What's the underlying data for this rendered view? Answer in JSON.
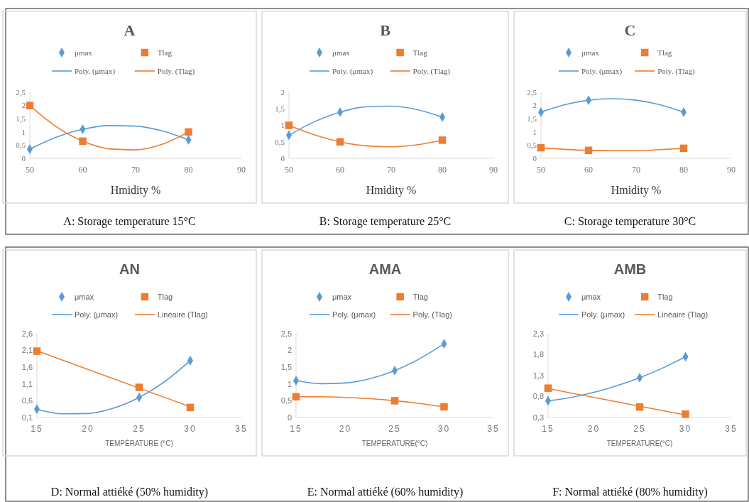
{
  "chart_data": [
    {
      "type": "scatter",
      "title": "A",
      "xlabel": "Hmidity %",
      "xlim": [
        50,
        90
      ],
      "xticks": [
        50,
        60,
        70,
        80,
        90
      ],
      "ylim": [
        0,
        2.5
      ],
      "yticks": [
        0,
        {
          "value": 0.5,
          "label": "0,5"
        },
        1,
        {
          "value": 1.5,
          "label": "1,5"
        },
        2,
        {
          "value": 2.5,
          "label": "2,5"
        }
      ],
      "legend": "top",
      "grid": false,
      "annotations": [
        "A: Storage temperature 15°C"
      ],
      "series": [
        {
          "name": "μmax",
          "type": "scatter",
          "marker": "diamond",
          "color": "#5b9bd5",
          "x": [
            50,
            60,
            80
          ],
          "values": [
            0.35,
            1.1,
            0.7
          ]
        },
        {
          "name": "Tlag",
          "type": "scatter",
          "marker": "square",
          "color": "#ed7d31",
          "x": [
            50,
            60,
            80
          ],
          "values": [
            2.0,
            0.65,
            1.0
          ]
        },
        {
          "name": "Poly. (μmax)",
          "type": "line",
          "marker": "none",
          "line_style": "solid",
          "color": "#5b9bd5",
          "x": [
            50,
            55,
            60,
            65,
            70,
            75,
            80
          ],
          "values": [
            0.35,
            0.8,
            1.1,
            1.24,
            1.22,
            1.04,
            0.7
          ]
        },
        {
          "name": "Poly. (Tlag)",
          "type": "line",
          "marker": "none",
          "line_style": "solid",
          "color": "#ed7d31",
          "x": [
            50,
            55,
            60,
            65,
            70,
            75,
            80
          ],
          "values": [
            2.0,
            1.2,
            0.65,
            0.36,
            0.32,
            0.53,
            1.0
          ]
        }
      ]
    },
    {
      "type": "scatter",
      "title": "B",
      "xlabel": "Hmidity %",
      "xlim": [
        50,
        90
      ],
      "xticks": [
        50,
        60,
        70,
        80,
        90
      ],
      "ylim": [
        0,
        2
      ],
      "yticks": [
        0,
        {
          "value": 0.5,
          "label": "0,5"
        },
        1,
        {
          "value": 1.5,
          "label": "1,5"
        },
        2
      ],
      "legend": "top",
      "grid": false,
      "annotations": [
        "B: Storage temperature 25°C"
      ],
      "series": [
        {
          "name": "μmax",
          "type": "scatter",
          "marker": "diamond",
          "color": "#5b9bd5",
          "x": [
            50,
            60,
            80
          ],
          "values": [
            0.7,
            1.4,
            1.25
          ]
        },
        {
          "name": "Tlag",
          "type": "scatter",
          "marker": "square",
          "color": "#ed7d31",
          "x": [
            50,
            60,
            80
          ],
          "values": [
            1.0,
            0.5,
            0.55
          ]
        },
        {
          "name": "Poly. (μmax)",
          "type": "line",
          "marker": "none",
          "line_style": "solid",
          "color": "#5b9bd5",
          "x": [
            50,
            55,
            60,
            65,
            70,
            75,
            80
          ],
          "values": [
            0.7,
            1.11,
            1.4,
            1.56,
            1.58,
            1.48,
            1.25
          ]
        },
        {
          "name": "Poly. (Tlag)",
          "type": "line",
          "marker": "none",
          "line_style": "solid",
          "color": "#ed7d31",
          "x": [
            50,
            55,
            60,
            65,
            70,
            75,
            80
          ],
          "values": [
            1.0,
            0.71,
            0.5,
            0.38,
            0.35,
            0.41,
            0.55
          ]
        }
      ]
    },
    {
      "type": "scatter",
      "title": "C",
      "xlabel": "Hmidity %",
      "xlim": [
        50,
        90
      ],
      "xticks": [
        50,
        60,
        70,
        80,
        90
      ],
      "ylim": [
        0,
        2.5
      ],
      "yticks": [
        0,
        {
          "value": 0.5,
          "label": "0,5"
        },
        1,
        {
          "value": 1.5,
          "label": "1,5"
        },
        2,
        {
          "value": 2.5,
          "label": "2,5"
        }
      ],
      "legend": "top",
      "grid": false,
      "annotations": [
        "C: Storage temperature 30°C"
      ],
      "series": [
        {
          "name": "μmax",
          "type": "scatter",
          "marker": "diamond",
          "color": "#5b9bd5",
          "x": [
            50,
            60,
            80
          ],
          "values": [
            1.75,
            2.2,
            1.75
          ]
        },
        {
          "name": "Tlag",
          "type": "scatter",
          "marker": "square",
          "color": "#ed7d31",
          "x": [
            50,
            60,
            80
          ],
          "values": [
            0.4,
            0.3,
            0.38
          ]
        },
        {
          "name": "Poly. (μmax)",
          "type": "line",
          "marker": "none",
          "line_style": "solid",
          "color": "#5b9bd5",
          "x": [
            50,
            55,
            60,
            65,
            70,
            75,
            80
          ],
          "values": [
            1.75,
            2.03,
            2.2,
            2.26,
            2.2,
            2.03,
            1.75
          ]
        },
        {
          "name": "Poly. (Tlag)",
          "type": "line",
          "marker": "none",
          "line_style": "solid",
          "color": "#ed7d31",
          "x": [
            50,
            55,
            60,
            65,
            70,
            75,
            80
          ],
          "values": [
            0.4,
            0.34,
            0.3,
            0.29,
            0.29,
            0.33,
            0.38
          ]
        }
      ]
    },
    {
      "type": "scatter",
      "title": "AN",
      "xlabel": "TEMPÉRATURE (°C)",
      "xlim": [
        15,
        35
      ],
      "xticks": [
        15,
        20,
        25,
        30,
        35
      ],
      "ylim": [
        0.1,
        2.6
      ],
      "yticks": [
        {
          "value": 0.1,
          "label": "0,1"
        },
        {
          "value": 0.6,
          "label": "0,6"
        },
        {
          "value": 1.1,
          "label": "1,1"
        },
        {
          "value": 1.6,
          "label": "1,6"
        },
        {
          "value": 2.1,
          "label": "2,1"
        },
        {
          "value": 2.6,
          "label": "2,6"
        }
      ],
      "legend": "top",
      "grid": false,
      "annotations": [
        "D: Normal attiéké (50% humidity)"
      ],
      "series": [
        {
          "name": "μmax",
          "type": "scatter",
          "marker": "diamond",
          "color": "#5b9bd5",
          "x": [
            15,
            25,
            30
          ],
          "values": [
            0.35,
            0.7,
            1.8
          ]
        },
        {
          "name": "Tlag",
          "type": "scatter",
          "marker": "square",
          "color": "#ed7d31",
          "x": [
            15,
            25,
            30
          ],
          "values": [
            2.08,
            1.0,
            0.4
          ]
        },
        {
          "name": "Poly. (μmax)",
          "type": "line",
          "marker": "none",
          "line_style": "solid",
          "color": "#5b9bd5",
          "x": [
            15,
            17.5,
            20,
            22.5,
            25,
            27.5,
            30
          ],
          "values": [
            0.35,
            0.21,
            0.22,
            0.38,
            0.7,
            1.17,
            1.8
          ]
        },
        {
          "name": "Linéaire (Tlag)",
          "type": "line",
          "marker": "none",
          "line_style": "solid",
          "color": "#ed7d31",
          "x": [
            15,
            30
          ],
          "values": [
            2.09,
            0.42
          ]
        }
      ]
    },
    {
      "type": "scatter",
      "title": "AMA",
      "xlabel": "TEMPERATURE(°C)",
      "xlim": [
        15,
        35
      ],
      "xticks": [
        15,
        20,
        25,
        30,
        35
      ],
      "ylim": [
        0,
        2.5
      ],
      "yticks": [
        0,
        {
          "value": 0.5,
          "label": "0,5"
        },
        1,
        {
          "value": 1.5,
          "label": "1,5"
        },
        2,
        {
          "value": 2.5,
          "label": "2,5"
        }
      ],
      "legend": "top",
      "grid": false,
      "annotations": [
        "E: Normal attiéké (60% humidity)"
      ],
      "series": [
        {
          "name": "μmax",
          "type": "scatter",
          "marker": "diamond",
          "color": "#5b9bd5",
          "x": [
            15,
            25,
            30
          ],
          "values": [
            1.1,
            1.4,
            2.2
          ]
        },
        {
          "name": "Tlag",
          "type": "scatter",
          "marker": "square",
          "color": "#ed7d31",
          "x": [
            15,
            25,
            30
          ],
          "values": [
            0.62,
            0.5,
            0.32
          ]
        },
        {
          "name": "Poly. (μmax)",
          "type": "line",
          "marker": "none",
          "line_style": "solid",
          "color": "#5b9bd5",
          "x": [
            15,
            17.5,
            20,
            22.5,
            25,
            27.5,
            30
          ],
          "values": [
            1.1,
            1.01,
            1.03,
            1.16,
            1.4,
            1.75,
            2.2
          ]
        },
        {
          "name": "Poly. (Tlag)",
          "type": "line",
          "marker": "none",
          "line_style": "solid",
          "color": "#ed7d31",
          "x": [
            15,
            17.5,
            20,
            22.5,
            25,
            27.5,
            30
          ],
          "values": [
            0.62,
            0.62,
            0.6,
            0.56,
            0.5,
            0.42,
            0.32
          ]
        }
      ]
    },
    {
      "type": "scatter",
      "title": "AMB",
      "xlabel": "TEMPERATURE(°C)",
      "xlim": [
        15,
        35
      ],
      "xticks": [
        15,
        20,
        25,
        30,
        35
      ],
      "ylim": [
        0.3,
        2.3
      ],
      "yticks": [
        {
          "value": 0.3,
          "label": "0,3"
        },
        {
          "value": 0.8,
          "label": "0,8"
        },
        {
          "value": 1.3,
          "label": "1,3"
        },
        {
          "value": 1.8,
          "label": "1,8"
        },
        {
          "value": 2.3,
          "label": "2,3"
        }
      ],
      "legend": "top",
      "grid": false,
      "annotations": [
        "F: Normal attiéké (80% humidity)"
      ],
      "series": [
        {
          "name": "μmax",
          "type": "scatter",
          "marker": "diamond",
          "color": "#5b9bd5",
          "x": [
            15,
            25,
            30
          ],
          "values": [
            0.7,
            1.25,
            1.75
          ]
        },
        {
          "name": "Tlag",
          "type": "scatter",
          "marker": "square",
          "color": "#ed7d31",
          "x": [
            15,
            25,
            30
          ],
          "values": [
            1.0,
            0.55,
            0.38
          ]
        },
        {
          "name": "Poly. (μmax)",
          "type": "line",
          "marker": "none",
          "line_style": "solid",
          "color": "#5b9bd5",
          "x": [
            15,
            17.5,
            20,
            22.5,
            25,
            27.5,
            30
          ],
          "values": [
            0.7,
            0.78,
            0.9,
            1.06,
            1.25,
            1.48,
            1.75
          ]
        },
        {
          "name": "Linéaire (Tlag)",
          "type": "line",
          "marker": "none",
          "line_style": "solid",
          "color": "#ed7d31",
          "x": [
            15,
            30
          ],
          "values": [
            0.99,
            0.36
          ]
        }
      ]
    }
  ]
}
